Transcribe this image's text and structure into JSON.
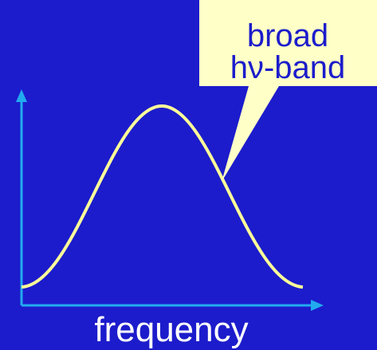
{
  "callout": {
    "lines": [
      "broad",
      "hν-band"
    ]
  },
  "x_axis_label": "frequency"
}
